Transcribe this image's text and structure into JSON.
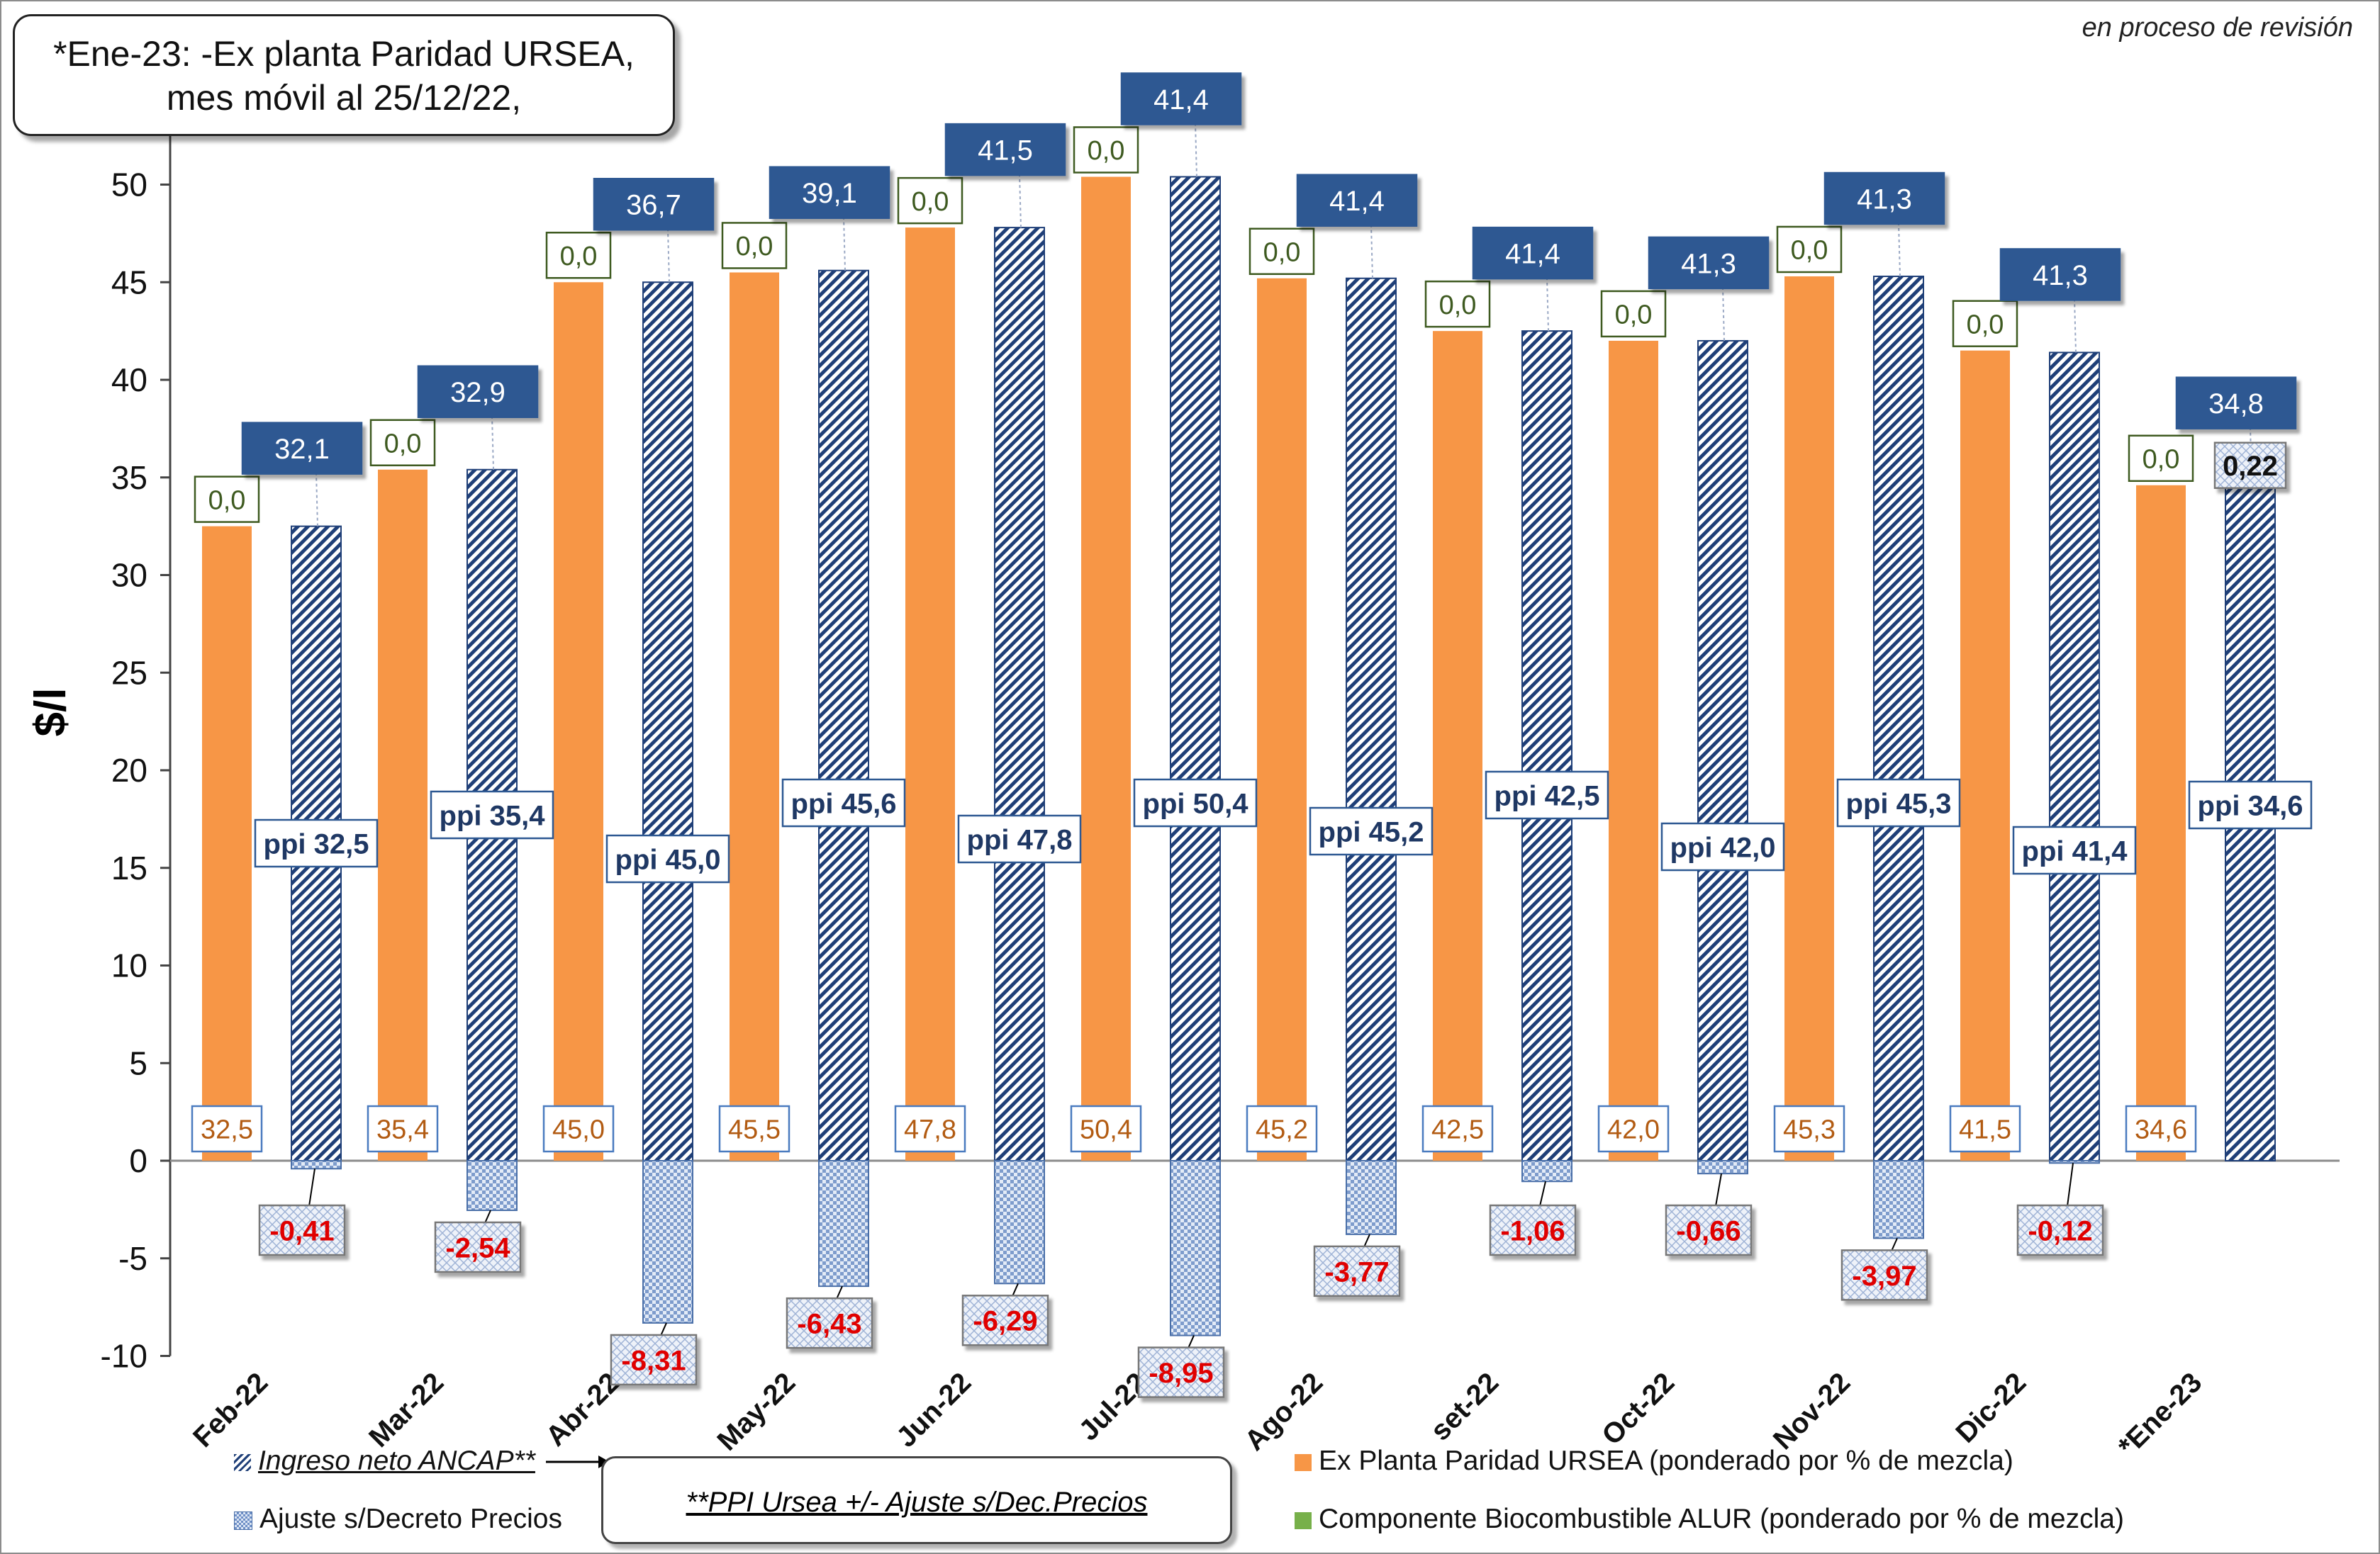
{
  "note": {
    "line1": "*Ene-23: -Ex planta Paridad URSEA,",
    "line2": "mes móvil al 25/12/22,"
  },
  "revision_note": "en proceso de revisión",
  "formula_note": "**PPI Ursea +/- Ajuste s/Dec.Precios",
  "colors": {
    "ex_planta": "#f79646",
    "ingreso_hatch": "#1f3f78",
    "ajuste_check": "#6e8fc6",
    "biocombustible": "#77b04a",
    "label_box_dark": "#2d5892",
    "negative_text": "#e00000",
    "orange_text": "#b25b12",
    "green_text": "#3e5a20"
  },
  "legend": {
    "ingreso": "Ingreso neto ANCAP**",
    "ajuste": "Ajuste s/Decreto Precios",
    "ex_planta": "Ex Planta Paridad URSEA (ponderado por % de mezcla)",
    "biocombustible": "Componente Biocombustible ALUR (ponderado por % de mezcla)"
  },
  "chart_data": {
    "type": "bar",
    "ylabel": "$/l",
    "ylim": [
      -10,
      55
    ],
    "yticks": [
      -10,
      -5,
      0,
      5,
      10,
      15,
      20,
      25,
      30,
      35,
      40,
      45,
      50
    ],
    "categories": [
      "Feb-22",
      "Mar-22",
      "Abr-22",
      "May-22",
      "Jun-22",
      "Jul-22",
      "Ago-22",
      "set-22",
      "Oct-22",
      "Nov-22",
      "Dic-22",
      "*Ene-23"
    ],
    "series": [
      {
        "name": "Ex Planta Paridad URSEA (ponderado por % de mezcla)",
        "values": [
          32.5,
          35.4,
          45.0,
          45.5,
          47.8,
          50.4,
          45.2,
          42.5,
          42.0,
          45.3,
          41.5,
          34.6
        ],
        "labels": [
          "32,5",
          "35,4",
          "45,0",
          "45,5",
          "47,8",
          "50,4",
          "45,2",
          "42,5",
          "42,0",
          "45,3",
          "41,5",
          "34,6"
        ]
      },
      {
        "name": "Componente Biocombustible ALUR (ponderado por % de mezcla)",
        "values": [
          0,
          0,
          0,
          0,
          0,
          0,
          0,
          0,
          0,
          0,
          0,
          0
        ],
        "labels": [
          "0,0",
          "0,0",
          "0,0",
          "0,0",
          "0,0",
          "0,0",
          "0,0",
          "0,0",
          "0,0",
          "0,0",
          "0,0",
          "0,0"
        ]
      },
      {
        "name": "Ingreso neto ANCAP**",
        "values": [
          32.1,
          32.9,
          36.7,
          39.1,
          41.5,
          41.4,
          41.4,
          41.4,
          41.3,
          41.3,
          41.3,
          34.8
        ],
        "labels": [
          "32,1",
          "32,9",
          "36,7",
          "39,1",
          "41,5",
          "41,4",
          "41,4",
          "41,4",
          "41,3",
          "41,3",
          "41,3",
          "34,8"
        ]
      },
      {
        "name": "ppi",
        "values": [
          32.5,
          35.4,
          45.0,
          45.6,
          47.8,
          50.4,
          45.2,
          42.5,
          42.0,
          45.3,
          41.4,
          34.6
        ],
        "labels": [
          "ppi 32,5",
          "ppi 35,4",
          "ppi 45,0",
          "ppi 45,6",
          "ppi 47,8",
          "ppi 50,4",
          "ppi 45,2",
          "ppi 42,5",
          "ppi 42,0",
          "ppi 45,3",
          "ppi 41,4",
          "ppi 34,6"
        ]
      },
      {
        "name": "Ajuste s/Decreto Precios",
        "values": [
          -0.41,
          -2.54,
          -8.31,
          -6.43,
          -6.29,
          -8.95,
          -3.77,
          -1.06,
          -0.66,
          -3.97,
          -0.12,
          0.22
        ],
        "labels": [
          "-0,41",
          "-2,54",
          "-8,31",
          "-6,43",
          "-6,29",
          "-8,95",
          "-3,77",
          "-1,06",
          "-0,66",
          "-3,97",
          "-0,12",
          "0,22"
        ]
      }
    ]
  }
}
